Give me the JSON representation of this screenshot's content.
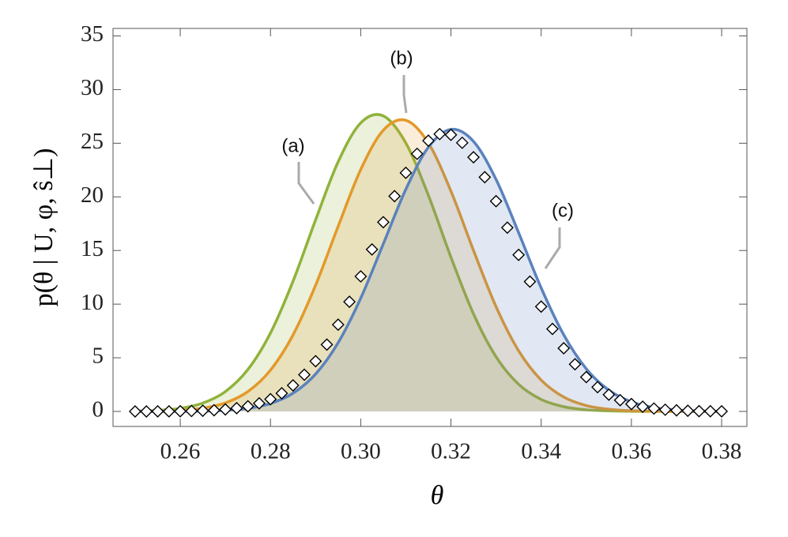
{
  "chart_data": {
    "type": "line",
    "x_label": "θ",
    "y_label": "p(θ | U, φ, ŝ⊥)",
    "xlim": [
      0.2451,
      0.3856
    ],
    "ylim": [
      -1.4,
      35.7
    ],
    "xticks": [
      0.26,
      0.28,
      {
        "value": 0.3,
        "label": "0.30"
      },
      0.32,
      0.34,
      0.36,
      0.38
    ],
    "yticks": [
      0,
      5,
      10,
      15,
      20,
      25,
      30,
      35
    ],
    "x": [
      0.25,
      0.255,
      0.26,
      0.265,
      0.27,
      0.275,
      0.28,
      0.285,
      0.29,
      0.295,
      0.3,
      0.305,
      0.31,
      0.315,
      0.32,
      0.325,
      0.33,
      0.335,
      0.34,
      0.345,
      0.35,
      0.355,
      0.36,
      0.365,
      0.37,
      0.375,
      0.38
    ],
    "series": [
      {
        "name": "(a)",
        "color": "#8fb33a",
        "values": [
          0.03,
          0.1,
          0.29,
          0.78,
          1.85,
          3.91,
          7.31,
          12.14,
          17.85,
          23.27,
          26.89,
          27.55,
          25.02,
          20.14,
          14.37,
          9.09,
          5.09,
          2.53,
          1.12,
          0.44,
          0.15,
          0.05,
          0.01,
          0,
          0,
          0,
          0
        ]
      },
      {
        "name": "(b)",
        "color": "#e3992a",
        "values": [
          0.01,
          0.03,
          0.1,
          0.3,
          0.79,
          1.85,
          3.85,
          7.13,
          11.76,
          17.25,
          22.54,
          26.21,
          27.14,
          25.02,
          20.53,
          15.01,
          9.76,
          5.65,
          2.92,
          1.34,
          0.55,
          0.2,
          0.06,
          0.02,
          0,
          0,
          0
        ]
      },
      {
        "name": "(c)",
        "color": "#5a82bd",
        "values": [
          0,
          0,
          0.01,
          0.03,
          0.1,
          0.29,
          0.74,
          1.7,
          3.48,
          6.4,
          10.55,
          15.61,
          20.7,
          24.63,
          26.29,
          25.17,
          21.62,
          16.66,
          11.51,
          7.14,
          3.97,
          1.98,
          0.89,
          0.36,
          0.13,
          0.04,
          0.01
        ]
      },
      {
        "marker": "diamond",
        "color": "#000000",
        "x": [
          0.25,
          0.2525,
          0.255,
          0.2575,
          0.26,
          0.2625,
          0.265,
          0.2675,
          0.27,
          0.2725,
          0.275,
          0.2775,
          0.28,
          0.2825,
          0.285,
          0.2875,
          0.29,
          0.2925,
          0.295,
          0.2975,
          0.3,
          0.3025,
          0.305,
          0.3075,
          0.31,
          0.3125,
          0.315,
          0.3175,
          0.32,
          0.3225,
          0.325,
          0.3275,
          0.33,
          0.3325,
          0.335,
          0.3375,
          0.34,
          0.3425,
          0.345,
          0.3475,
          0.35,
          0.3525,
          0.355,
          0.3575,
          0.36,
          0.3625,
          0.365,
          0.3675,
          0.37,
          0.3725,
          0.375,
          0.3775,
          0.38
        ],
        "values": [
          0,
          0,
          0.01,
          0.01,
          0.02,
          0.04,
          0.06,
          0.11,
          0.18,
          0.3,
          0.48,
          0.75,
          1.14,
          1.69,
          2.43,
          3.42,
          4.68,
          6.23,
          8.09,
          10.22,
          12.59,
          15.1,
          17.64,
          20.07,
          22.24,
          24.01,
          25.24,
          25.85,
          25.78,
          25.04,
          23.69,
          21.83,
          19.6,
          17.13,
          14.59,
          12.1,
          9.77,
          7.69,
          5.89,
          4.4,
          3.2,
          2.26,
          1.56,
          1.05,
          0.69,
          0.44,
          0.27,
          0.16,
          0.1,
          0.06,
          0.03,
          0.02,
          0.01
        ]
      }
    ]
  }
}
